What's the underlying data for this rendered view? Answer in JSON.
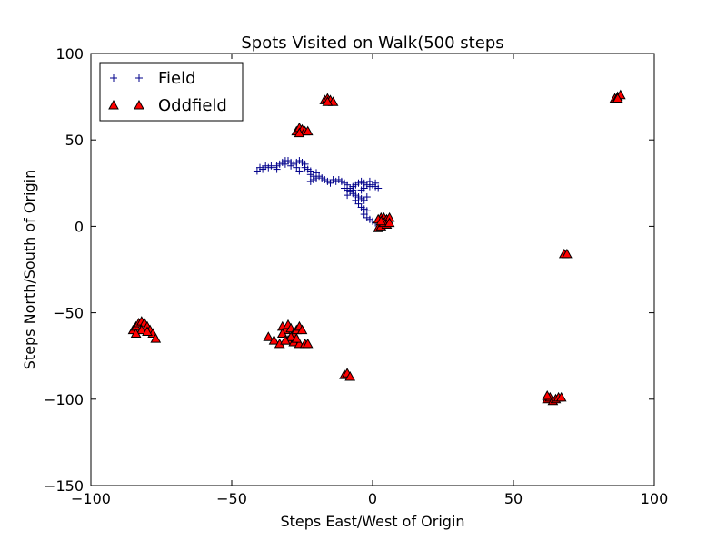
{
  "chart_data": {
    "type": "scatter",
    "title": "Spots Visited on Walk(500 steps",
    "xlabel": "Steps East/West of Origin",
    "ylabel": "Steps North/South of Origin",
    "xlim": [
      -100,
      100
    ],
    "ylim": [
      -150,
      100
    ],
    "xticks": [
      -100,
      -50,
      0,
      50,
      100
    ],
    "yticks": [
      -150,
      -100,
      -50,
      0,
      50,
      100
    ],
    "xtick_labels": [
      "−100",
      "−50",
      "0",
      "50",
      "100"
    ],
    "ytick_labels": [
      "−150",
      "−100",
      "−50",
      "0",
      "50",
      "100"
    ],
    "grid": false,
    "legend_position": "top-left",
    "series": [
      {
        "name": "Field",
        "marker": "plus",
        "color": "#00008b",
        "points": [
          [
            -41,
            32
          ],
          [
            -40,
            34
          ],
          [
            -39,
            33
          ],
          [
            -38,
            35
          ],
          [
            -37,
            34
          ],
          [
            -36,
            35
          ],
          [
            -35,
            34
          ],
          [
            -34,
            35
          ],
          [
            -33,
            36
          ],
          [
            -32,
            37
          ],
          [
            -31,
            38
          ],
          [
            -30,
            38
          ],
          [
            -29,
            37
          ],
          [
            -28,
            36
          ],
          [
            -27,
            37
          ],
          [
            -26,
            38
          ],
          [
            -25,
            37
          ],
          [
            -24,
            36
          ],
          [
            -24,
            34
          ],
          [
            -23,
            33
          ],
          [
            -22,
            32
          ],
          [
            -22,
            30
          ],
          [
            -21,
            29
          ],
          [
            -20,
            28
          ],
          [
            -21,
            27
          ],
          [
            -22,
            26
          ],
          [
            -20,
            31
          ],
          [
            -19,
            29
          ],
          [
            -18,
            28
          ],
          [
            -17,
            27
          ],
          [
            -16,
            26
          ],
          [
            -15,
            25
          ],
          [
            -14,
            27
          ],
          [
            -13,
            26
          ],
          [
            -12,
            27
          ],
          [
            -11,
            26
          ],
          [
            -10,
            25
          ],
          [
            -9,
            24
          ],
          [
            -10,
            22
          ],
          [
            -9,
            21
          ],
          [
            -8,
            20
          ],
          [
            -7,
            19
          ],
          [
            -6,
            18
          ],
          [
            -7,
            23
          ],
          [
            -6,
            24
          ],
          [
            -5,
            25
          ],
          [
            -4,
            26
          ],
          [
            -3,
            25
          ],
          [
            -2,
            24
          ],
          [
            -1,
            23
          ],
          [
            0,
            24
          ],
          [
            1,
            23
          ],
          [
            2,
            22
          ],
          [
            1,
            25
          ],
          [
            -1,
            26
          ],
          [
            -3,
            22
          ],
          [
            -4,
            21
          ],
          [
            -5,
            17
          ],
          [
            -6,
            15
          ],
          [
            -5,
            13
          ],
          [
            -4,
            11
          ],
          [
            -3,
            10
          ],
          [
            -2,
            9
          ],
          [
            -3,
            7
          ],
          [
            -2,
            5
          ],
          [
            -1,
            4
          ],
          [
            0,
            3
          ],
          [
            1,
            2
          ],
          [
            2,
            3
          ],
          [
            -4,
            16
          ],
          [
            -3,
            15
          ],
          [
            -2,
            17
          ],
          [
            -8,
            22
          ],
          [
            -7,
            21
          ],
          [
            -9,
            18
          ],
          [
            -26,
            32
          ],
          [
            -27,
            34
          ],
          [
            -29,
            35
          ],
          [
            -31,
            36
          ],
          [
            -34,
            33
          ]
        ]
      },
      {
        "name": "Oddfield",
        "marker": "triangle",
        "color": "#ff0000",
        "points": [
          [
            -27,
            55
          ],
          [
            -26,
            57
          ],
          [
            -25,
            56
          ],
          [
            -24,
            55
          ],
          [
            -23,
            55
          ],
          [
            -26,
            54
          ],
          [
            -17,
            73
          ],
          [
            -16,
            74
          ],
          [
            -15,
            73
          ],
          [
            -14,
            72
          ],
          [
            -16,
            72
          ],
          [
            86,
            74
          ],
          [
            87,
            75
          ],
          [
            88,
            76
          ],
          [
            87,
            74
          ],
          [
            2,
            -1
          ],
          [
            3,
            0
          ],
          [
            3,
            5
          ],
          [
            4,
            5
          ],
          [
            5,
            4
          ],
          [
            6,
            5
          ],
          [
            5,
            1
          ],
          [
            4,
            2
          ],
          [
            6,
            2
          ],
          [
            2,
            4
          ],
          [
            3,
            3
          ],
          [
            68,
            -16
          ],
          [
            69,
            -16
          ],
          [
            -85,
            -60
          ],
          [
            -84,
            -58
          ],
          [
            -83,
            -56
          ],
          [
            -82,
            -55
          ],
          [
            -81,
            -56
          ],
          [
            -80,
            -58
          ],
          [
            -79,
            -60
          ],
          [
            -78,
            -62
          ],
          [
            -77,
            -65
          ],
          [
            -82,
            -60
          ],
          [
            -80,
            -61
          ],
          [
            -84,
            -62
          ],
          [
            -37,
            -64
          ],
          [
            -35,
            -66
          ],
          [
            -33,
            -68
          ],
          [
            -32,
            -58
          ],
          [
            -31,
            -60
          ],
          [
            -30,
            -57
          ],
          [
            -29,
            -59
          ],
          [
            -28,
            -62
          ],
          [
            -27,
            -60
          ],
          [
            -26,
            -58
          ],
          [
            -25,
            -60
          ],
          [
            -30,
            -66
          ],
          [
            -28,
            -67
          ],
          [
            -26,
            -68
          ],
          [
            -24,
            -68
          ],
          [
            -23,
            -68
          ],
          [
            -29,
            -64
          ],
          [
            -32,
            -62
          ],
          [
            -31,
            -66
          ],
          [
            -27,
            -65
          ],
          [
            -10,
            -86
          ],
          [
            -9,
            -85
          ],
          [
            -8,
            -87
          ],
          [
            62,
            -100
          ],
          [
            63,
            -99
          ],
          [
            64,
            -101
          ],
          [
            65,
            -100
          ],
          [
            66,
            -99
          ],
          [
            67,
            -99
          ],
          [
            62,
            -98
          ]
        ]
      }
    ]
  }
}
